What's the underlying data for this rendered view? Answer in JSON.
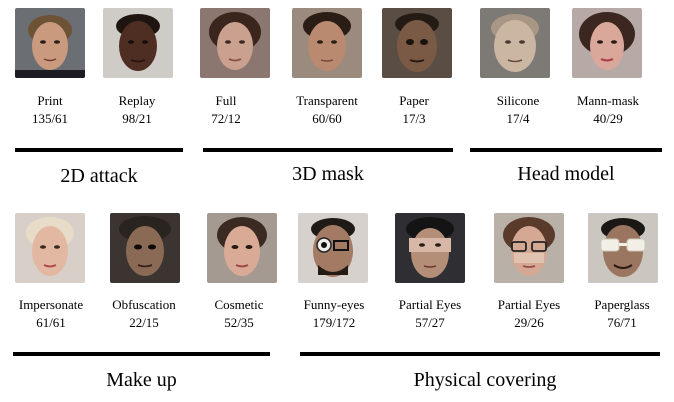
{
  "rows": [
    {
      "items": [
        {
          "name": "Print",
          "count": "135/61",
          "skin": "#c99a7e",
          "bg": "#6b6f73",
          "hair": "#6d5236"
        },
        {
          "name": "Replay",
          "count": "98/21",
          "skin": "#4e2e22",
          "bg": "#cfcbc6",
          "hair": "#1e1410"
        },
        {
          "name": "Full",
          "count": "72/12",
          "skin": "#caa08f",
          "bg": "#8b7670",
          "hair": "#3a261d"
        },
        {
          "name": "Transparent",
          "count": "60/60",
          "skin": "#b98a6f",
          "bg": "#9a8b7e",
          "hair": "#2a1d15"
        },
        {
          "name": "Paper",
          "count": "17/3",
          "skin": "#7a5a45",
          "bg": "#5a4d43",
          "hair": "#241b15"
        },
        {
          "name": "Silicone",
          "count": "17/4",
          "skin": "#cbb6a2",
          "bg": "#7d7a76",
          "hair": "#a89784"
        },
        {
          "name": "Mann-mask",
          "count": "40/29",
          "skin": "#d9a89a",
          "bg": "#b7a9a6",
          "hair": "#3b2620"
        }
      ],
      "groups": [
        {
          "title": "2D attack"
        },
        {
          "title": "3D mask"
        },
        {
          "title": "Head model"
        }
      ]
    },
    {
      "items": [
        {
          "name": "Impersonate",
          "count": "61/61",
          "skin": "#e2b8a2",
          "bg": "#d8cfc9",
          "hair": "#e8dcc8"
        },
        {
          "name": "Obfuscation",
          "count": "22/15",
          "skin": "#8a6a55",
          "bg": "#3b3430",
          "hair": "#2a2420"
        },
        {
          "name": "Cosmetic",
          "count": "52/35",
          "skin": "#d9ab96",
          "bg": "#a59a92",
          "hair": "#3a2a22"
        },
        {
          "name": "Funny-eyes",
          "count": "179/172",
          "skin": "#a37a63",
          "bg": "#d6d1cc",
          "hair": "#1f1a16"
        },
        {
          "name": "Partial Eyes",
          "count": "57/27",
          "skin": "#b58e78",
          "bg": "#2f2f33",
          "hair": "#141414"
        },
        {
          "name": "Partial Eyes",
          "count": "29/26",
          "skin": "#d4a893",
          "bg": "#b9b0a7",
          "hair": "#5a3a2a"
        },
        {
          "name": "Paperglass",
          "count": "76/71",
          "skin": "#9a7560",
          "bg": "#cbc6c0",
          "hair": "#1b1714"
        }
      ],
      "groups": [
        {
          "title": "Make up"
        },
        {
          "title": "Physical covering"
        }
      ]
    }
  ]
}
